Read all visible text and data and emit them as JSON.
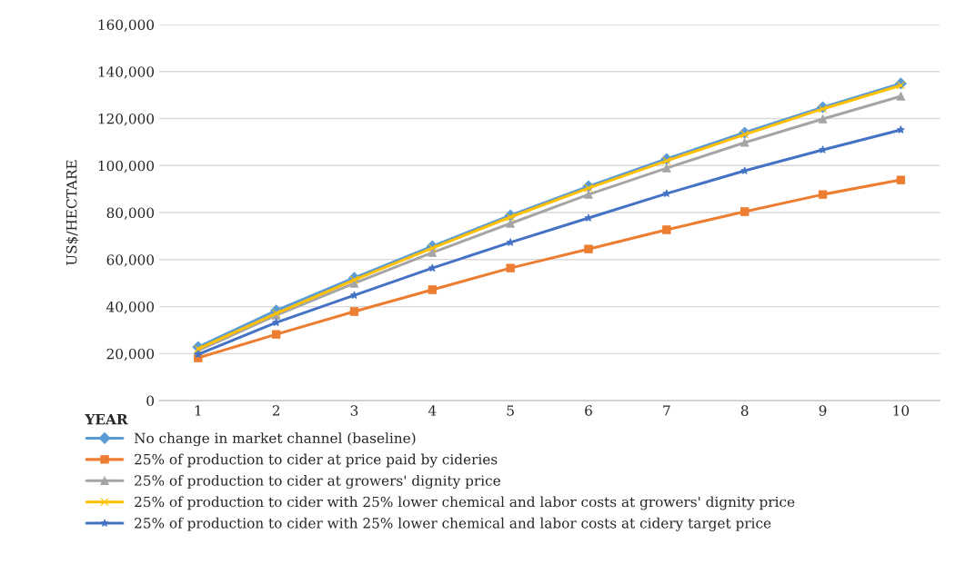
{
  "chart_data": {
    "type": "line",
    "xlabel": "YEAR",
    "ylabel": "US$/HECTARE",
    "categories": [
      "1",
      "2",
      "3",
      "4",
      "5",
      "6",
      "7",
      "8",
      "9",
      "10"
    ],
    "series": [
      {
        "name": "No change in market channel (baseline)",
        "color": "#5b9bd5",
        "marker": "diamond",
        "values": [
          22800,
          38300,
          52200,
          65700,
          78800,
          91200,
          102800,
          114000,
          124800,
          134900
        ]
      },
      {
        "name": "25% of production to cider at price paid by cideries",
        "color": "#ed7d31",
        "marker": "square",
        "values": [
          18200,
          28200,
          37900,
          47200,
          56400,
          64500,
          72700,
          80400,
          87700,
          93900
        ]
      },
      {
        "name": "25% of production to cider at growers' dignity price",
        "color": "#a5a5a5",
        "marker": "triangle",
        "values": [
          21300,
          36300,
          49900,
          63000,
          75400,
          87700,
          98900,
          109800,
          119800,
          129500
        ]
      },
      {
        "name": "25% of production to cider with 25% lower chemical and labor costs at growers' dignity price",
        "color": "#ffc000",
        "marker": "cross",
        "values": [
          22000,
          37100,
          51400,
          64900,
          78100,
          90400,
          102000,
          113200,
          124100,
          134100
        ]
      },
      {
        "name": "25% of production to cider with 25% lower chemical and labor costs at cidery target price",
        "color": "#4472c4",
        "marker": "star",
        "values": [
          19700,
          33200,
          44800,
          56400,
          67300,
          77700,
          88100,
          97800,
          106700,
          115200
        ]
      }
    ],
    "ylim": [
      0,
      160000
    ],
    "yticks": [
      0,
      {
        "value": 20000,
        "label": "20,000"
      },
      {
        "value": 40000,
        "label": "40,000"
      },
      {
        "value": 60000,
        "label": "60,000"
      },
      {
        "value": 80000,
        "label": "80,000"
      },
      {
        "value": 100000,
        "label": "100,000"
      },
      {
        "value": 120000,
        "label": "120,000"
      },
      {
        "value": 140000,
        "label": "140,000"
      },
      {
        "value": 160000,
        "label": "160,000"
      }
    ],
    "grid": "y",
    "legend": "bottom",
    "line_style": "solid"
  }
}
